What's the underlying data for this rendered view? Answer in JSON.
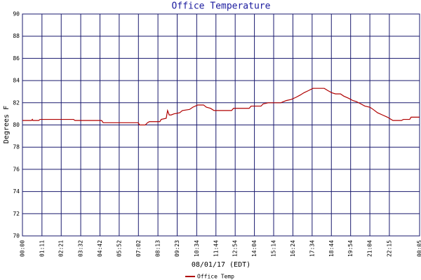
{
  "chart_data": {
    "type": "line",
    "title": "Office Temperature",
    "x_label": "08/01/17 (EDT)",
    "y_label": "Degrees F",
    "x": [
      0,
      33,
      36,
      38,
      59,
      64,
      71,
      186,
      191,
      288,
      294,
      421,
      426,
      447,
      455,
      462,
      500,
      505,
      523,
      528,
      534,
      541,
      551,
      572,
      582,
      608,
      620,
      638,
      659,
      669,
      684,
      697,
      761,
      768,
      825,
      832,
      868,
      876,
      894,
      940,
      960,
      978,
      996,
      1011,
      1024,
      1041,
      1057,
      1098,
      1111,
      1126,
      1139,
      1157,
      1169,
      1187,
      1202,
      1215,
      1231,
      1246,
      1264,
      1276,
      1292,
      1310,
      1328,
      1348,
      1379,
      1386,
      1409,
      1414,
      1445
    ],
    "series": [
      {
        "name": "Office Temp",
        "color": "#b00000",
        "values": [
          80.4,
          80.4,
          80.5,
          80.4,
          80.4,
          80.5,
          80.5,
          80.5,
          80.4,
          80.4,
          80.2,
          80.2,
          80.0,
          80.0,
          80.2,
          80.3,
          80.3,
          80.5,
          80.6,
          81.3,
          80.9,
          80.9,
          81.0,
          81.1,
          81.3,
          81.4,
          81.6,
          81.8,
          81.8,
          81.6,
          81.5,
          81.3,
          81.3,
          81.5,
          81.5,
          81.7,
          81.7,
          81.9,
          82.0,
          82.0,
          82.2,
          82.3,
          82.5,
          82.7,
          82.9,
          83.1,
          83.3,
          83.3,
          83.1,
          82.9,
          82.8,
          82.8,
          82.6,
          82.4,
          82.2,
          82.1,
          81.9,
          81.7,
          81.6,
          81.4,
          81.1,
          80.9,
          80.7,
          80.4,
          80.4,
          80.5,
          80.5,
          80.7,
          80.7
        ]
      }
    ],
    "xlim": [
      0,
      1445
    ],
    "xticks": [
      {
        "value": 0,
        "label": "00:00"
      },
      {
        "value": 71,
        "label": "01:11"
      },
      {
        "value": 141,
        "label": "02:21"
      },
      {
        "value": 212,
        "label": "03:32"
      },
      {
        "value": 282,
        "label": "04:42"
      },
      {
        "value": 352,
        "label": "05:52"
      },
      {
        "value": 422,
        "label": "07:02"
      },
      {
        "value": 493,
        "label": "08:13"
      },
      {
        "value": 563,
        "label": "09:23"
      },
      {
        "value": 634,
        "label": "10:34"
      },
      {
        "value": 704,
        "label": "11:44"
      },
      {
        "value": 774,
        "label": "12:54"
      },
      {
        "value": 844,
        "label": "14:04"
      },
      {
        "value": 914,
        "label": "15:14"
      },
      {
        "value": 984,
        "label": "16:24"
      },
      {
        "value": 1054,
        "label": "17:34"
      },
      {
        "value": 1124,
        "label": "18:44"
      },
      {
        "value": 1194,
        "label": "19:54"
      },
      {
        "value": 1264,
        "label": "21:04"
      },
      {
        "value": 1335,
        "label": "22:15"
      },
      {
        "value": 1445,
        "label": "00:05"
      }
    ],
    "ylim": [
      70,
      90
    ],
    "yticks": [
      70,
      72,
      74,
      76,
      78,
      80,
      82,
      84,
      86,
      88,
      90
    ],
    "grid": true,
    "grid_color": "#1a1a6e"
  }
}
